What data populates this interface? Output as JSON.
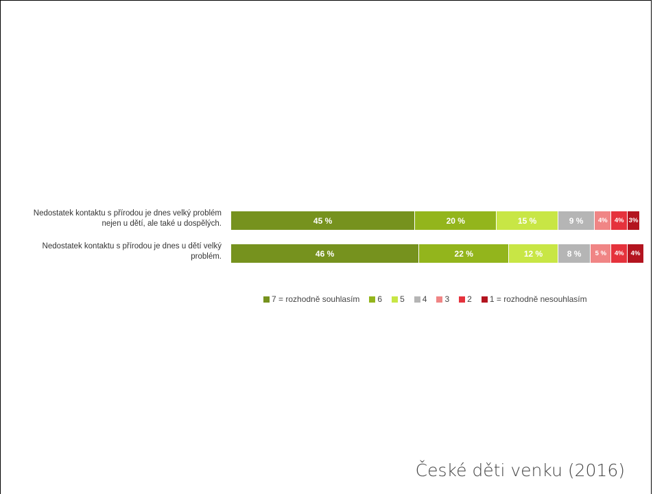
{
  "chart_data": {
    "type": "stacked-bar-horizontal",
    "categories": [
      "Nedostatek kontaktu s přírodou je dnes velký problém nejen u dětí, ale také u dospělých.",
      "Nedostatek kontaktu s přírodou je dnes u dětí velký problém."
    ],
    "xlim": [
      0,
      100
    ],
    "series": [
      {
        "name": "7 = rozhodně souhlasím",
        "color": "#76921e",
        "values": [
          45,
          46
        ],
        "value_labels": [
          "45 %",
          "46 %"
        ]
      },
      {
        "name": "6",
        "color": "#93b51c",
        "values": [
          20,
          22
        ],
        "value_labels": [
          "20 %",
          "22 %"
        ]
      },
      {
        "name": "5",
        "color": "#c8e645",
        "values": [
          15,
          12
        ],
        "value_labels": [
          "15 %",
          "12 %"
        ]
      },
      {
        "name": "4",
        "color": "#b5b5b5",
        "values": [
          9,
          8
        ],
        "value_labels": [
          "9 %",
          "8 %"
        ]
      },
      {
        "name": "3",
        "color": "#f08585",
        "values": [
          4,
          5
        ],
        "value_labels": [
          "4%",
          "5 %"
        ]
      },
      {
        "name": "2",
        "color": "#e5323c",
        "values": [
          4,
          4
        ],
        "value_labels": [
          "4%",
          "4%"
        ]
      },
      {
        "name": "1 = rozhodně nesouhlasím",
        "color": "#b3141f",
        "values": [
          3,
          4
        ],
        "value_labels": [
          "3%",
          "4%"
        ]
      }
    ],
    "legend": "bottom"
  },
  "footer": "České děti venku (2016)"
}
